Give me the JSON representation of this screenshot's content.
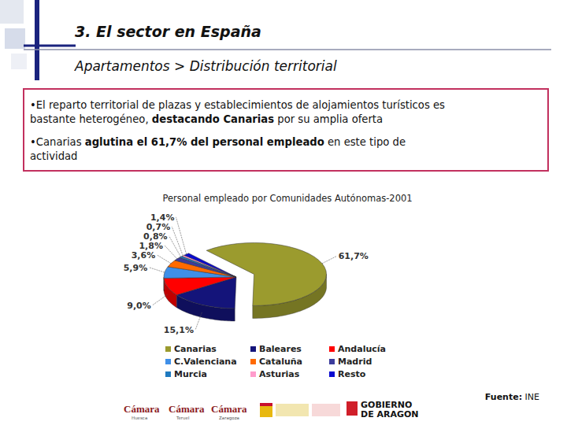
{
  "header": {
    "title": "3. El sector en España",
    "subtitle": "Apartamentos > Distribución territorial"
  },
  "text": {
    "bullets": [
      {
        "lines": [
          [
            {
              "text": "•El reparto territorial de plazas y establecimientos de alojamientos turísticos es",
              "bold": false
            }
          ],
          [
            {
              "text": "bastante heterogéneo, ",
              "bold": false
            },
            {
              "text": "destacando Canarias",
              "bold": true
            },
            {
              "text": " por su amplia oferta",
              "bold": false
            }
          ]
        ]
      },
      {
        "lines": [
          [
            {
              "text": "•Canarias ",
              "bold": false
            },
            {
              "text": "aglutina el 61,7% del personal empleado",
              "bold": true
            },
            {
              "text": " en este tipo de",
              "bold": false
            }
          ],
          [
            {
              "text": "actividad",
              "bold": false
            }
          ]
        ]
      }
    ]
  },
  "chart_data": {
    "type": "pie",
    "title": "Personal empleado por Comunidades Autónomas-2001",
    "categories": [
      "Canarias",
      "Baleares",
      "Andalucía",
      "C.Valenciana",
      "Cataluña",
      "Madrid",
      "Murcia",
      "Asturias",
      "Resto"
    ],
    "values": [
      61.7,
      15.1,
      9.0,
      5.9,
      3.6,
      1.8,
      0.8,
      0.7,
      1.4
    ],
    "value_labels": [
      "61,7%",
      "15,1%",
      "9,0%",
      "5,9%",
      "3,6%",
      "1,8%",
      "0,8%",
      "0,7%",
      "1,4%"
    ],
    "colors": [
      "#9b9b2e",
      "#14147a",
      "#ff0000",
      "#3f8fe8",
      "#ff6a00",
      "#3c3c9c",
      "#1f7ac0",
      "#ff9ccc",
      "#0a0ad0"
    ],
    "data_labels": true,
    "legend": "bottom"
  },
  "source": {
    "label": "Fuente:",
    "value": "INE"
  },
  "logos": [
    {
      "name": "Cámara",
      "place": "Huesca"
    },
    {
      "name": "Cámara",
      "place": "Teruel"
    },
    {
      "name": "Cámara",
      "place": "Zaragoza"
    }
  ],
  "government": [
    "GOBIERNO",
    "DE ARAGON"
  ]
}
